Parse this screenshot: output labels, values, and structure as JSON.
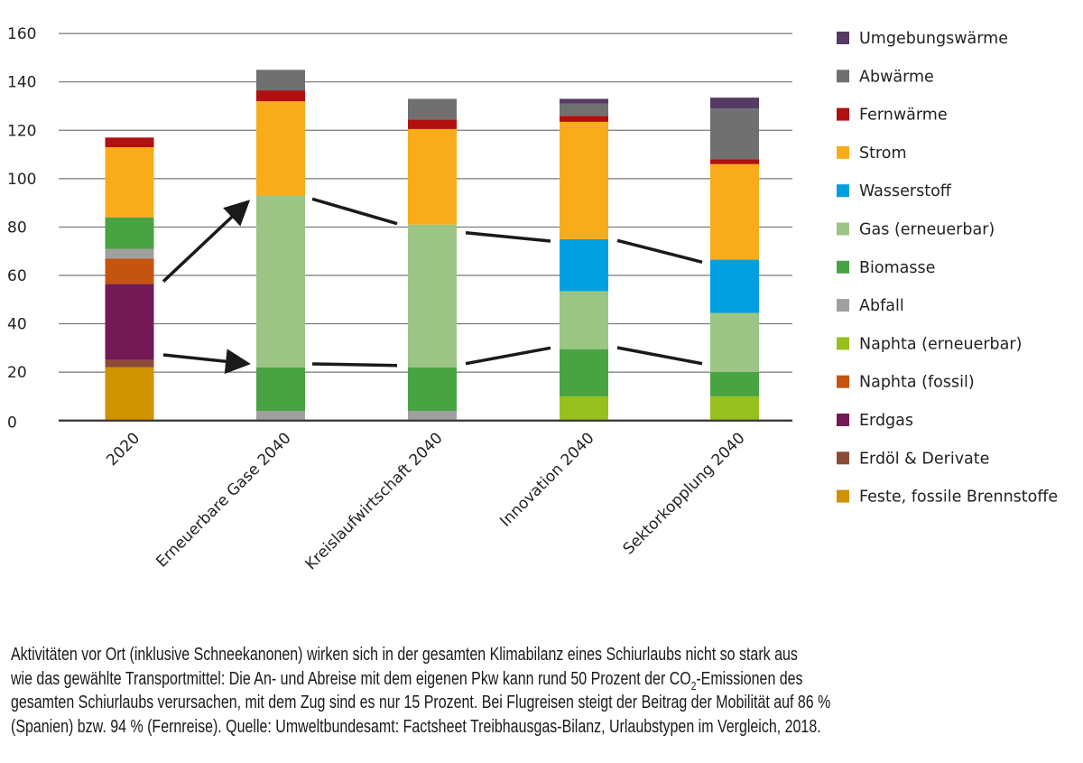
{
  "chart_data": {
    "type": "bar",
    "stacked": true,
    "title": "",
    "xlabel": "",
    "ylabel": "",
    "ylim": [
      0,
      160
    ],
    "yticks": [
      "0",
      "20",
      "40",
      "60",
      "80",
      "100",
      "120",
      "140",
      "160"
    ],
    "grid": true,
    "legend_position": "right",
    "categories": [
      "2020",
      "Erneuerbare Gase 2040",
      "Kreislaufwirtschaft 2040",
      "Innovation 2040",
      "Sektorkopplung 2040"
    ],
    "series": [
      {
        "name": "Feste, fossile Brennstoffe",
        "color": "#cf9200",
        "values": [
          22,
          0,
          0,
          0,
          0
        ]
      },
      {
        "name": "Erdöl & Derivate",
        "color": "#8c4a38",
        "values": [
          3,
          0,
          0,
          0,
          0
        ]
      },
      {
        "name": "Erdgas",
        "color": "#731a55",
        "values": [
          31.5,
          0,
          0,
          0,
          0
        ]
      },
      {
        "name": "Naphta (fossil)",
        "color": "#c55410",
        "values": [
          10.5,
          0,
          0,
          0,
          0
        ]
      },
      {
        "name": "Naphta (erneuerbar)",
        "color": "#97c01f",
        "values": [
          0,
          0,
          0,
          10,
          10
        ]
      },
      {
        "name": "Abfall",
        "color": "#a0a0a0",
        "values": [
          4,
          4,
          4,
          0,
          0
        ]
      },
      {
        "name": "Biomasse",
        "color": "#48a342",
        "values": [
          13,
          18,
          18,
          19.5,
          10
        ]
      },
      {
        "name": "Gas (erneuerbar)",
        "color": "#9bc485",
        "values": [
          0,
          71,
          59,
          24,
          24.5
        ]
      },
      {
        "name": "Wasserstoff",
        "color": "#009fe0",
        "values": [
          0,
          0,
          0,
          21.5,
          22
        ]
      },
      {
        "name": "Strom",
        "color": "#f8ac1a",
        "values": [
          29,
          39,
          39.5,
          48.5,
          39.5
        ]
      },
      {
        "name": "Fernwärme",
        "color": "#b01010",
        "values": [
          4,
          4.5,
          4,
          2.5,
          2
        ]
      },
      {
        "name": "Abwärme",
        "color": "#707070",
        "values": [
          0,
          8.5,
          8.5,
          5,
          21
        ]
      },
      {
        "name": "Umgebungswärme",
        "color": "#553a63",
        "values": [
          0,
          0,
          0,
          2,
          4.5
        ]
      }
    ],
    "legend_order": [
      "Umgebungswärme",
      "Abwärme",
      "Fernwärme",
      "Strom",
      "Wasserstoff",
      "Gas (erneuerbar)",
      "Biomasse",
      "Abfall",
      "Naphta (erneuerbar)",
      "Naphta (fossil)",
      "Erdgas",
      "Erdöl & Derivate",
      "Feste, fossile Brennstoffe"
    ],
    "annotations": "black arrows and connector lines between bars"
  },
  "caption": {
    "line1": "Aktivitäten vor Ort (inklusive Schneekanonen) wirken sich in der gesamten Klimabilanz eines Schiurlaubs nicht so stark aus",
    "line2a": "wie das gewählte Transportmittel: Die An- und Abreise mit dem eigenen Pkw kann rund 50 Prozent der CO",
    "line2sub": "2",
    "line2b": "-Emissionen des",
    "line3": "gesamten Schiurlaubs verursachen, mit dem Zug sind es nur 15 Prozent. Bei Flugreisen steigt der Beitrag der Mobilität auf 86 %",
    "line4": "(Spanien) bzw. 94 % (Fernreise).  Quelle: Umweltbundesamt: Factsheet Treibhausgas-Bilanz, Urlaubstypen im Vergleich, 2018."
  }
}
